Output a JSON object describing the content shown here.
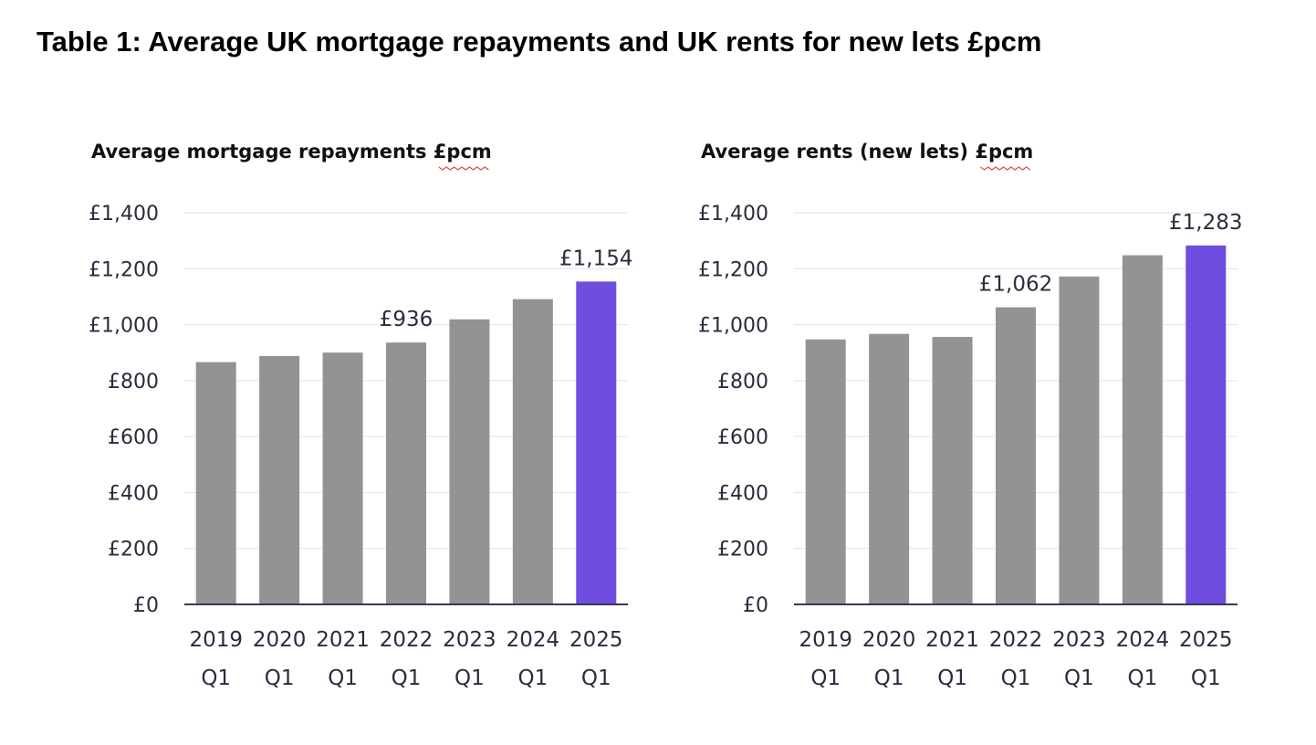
{
  "title": "Table 1: Average UK mortgage repayments and UK rents for new lets £pcm",
  "chart_data": [
    {
      "type": "bar",
      "title": "Average mortgage repayments £pcm",
      "categories": [
        [
          "2019",
          "Q1"
        ],
        [
          "2020",
          "Q1"
        ],
        [
          "2021",
          "Q1"
        ],
        [
          "2022",
          "Q1"
        ],
        [
          "2023",
          "Q1"
        ],
        [
          "2024",
          "Q1"
        ],
        [
          "2025",
          "Q1"
        ]
      ],
      "values": [
        866,
        888,
        900,
        936,
        1019,
        1091,
        1154
      ],
      "data_labels": {
        "3": "£936",
        "6": "£1,154"
      },
      "highlight_index": 6,
      "ylim": [
        0,
        1400
      ],
      "yticks": [
        "£0",
        "£200",
        "£400",
        "£600",
        "£800",
        "£1,000",
        "£1,200",
        "£1,400"
      ],
      "grid": true
    },
    {
      "type": "bar",
      "title": "Average rents (new lets) £pcm",
      "categories": [
        [
          "2019",
          "Q1"
        ],
        [
          "2020",
          "Q1"
        ],
        [
          "2021",
          "Q1"
        ],
        [
          "2022",
          "Q1"
        ],
        [
          "2023",
          "Q1"
        ],
        [
          "2024",
          "Q1"
        ],
        [
          "2025",
          "Q1"
        ]
      ],
      "values": [
        947,
        967,
        956,
        1062,
        1172,
        1248,
        1283
      ],
      "data_labels": {
        "3": "£1,062",
        "6": "£1,283"
      },
      "highlight_index": 6,
      "ylim": [
        0,
        1400
      ],
      "yticks": [
        "£0",
        "£200",
        "£400",
        "£600",
        "£800",
        "£1,000",
        "£1,200",
        "£1,400"
      ],
      "grid": true
    }
  ],
  "colors": {
    "bar": "#939393",
    "highlight": "#6f4ddf",
    "grid": "#e2e2e6",
    "axis": "#3b3752",
    "underline": "#d9534f"
  }
}
